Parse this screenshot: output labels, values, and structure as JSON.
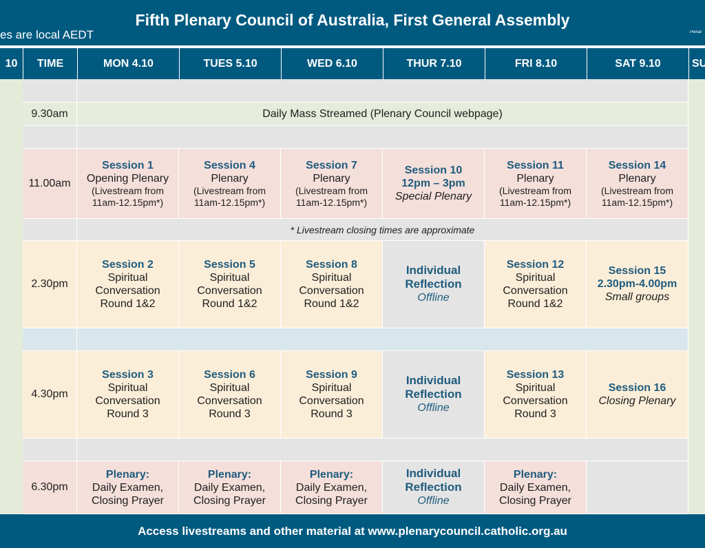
{
  "header": {
    "title": "Fifth Plenary Council of Australia, First General Assembly",
    "timezone_note": "es are local AEDT",
    "logo_text": "Plenar"
  },
  "columns": {
    "prev_day": "10",
    "time": "TIME",
    "mon": "MON 4.10",
    "tue": "TUES 5.10",
    "wed": "WED 6.10",
    "thu": "THUR 7.10",
    "fri": "FRI 8.10",
    "sat": "SAT 9.10",
    "sun": "SU"
  },
  "rows": {
    "mass": {
      "time": "9.30am",
      "text": "Daily Mass Streamed (Plenary Council webpage)"
    },
    "morning": {
      "time": "11.00am",
      "mon": {
        "title": "Session 1",
        "line1": "Opening Plenary",
        "stream1": "(Livestream from",
        "stream2": "11am-12.15pm*)"
      },
      "tue": {
        "title": "Session 4",
        "line1": "Plenary",
        "stream1": "(Livestream from",
        "stream2": "11am-12.15pm*)"
      },
      "wed": {
        "title": "Session 7",
        "line1": "Plenary",
        "stream1": "(Livestream from",
        "stream2": "11am-12.15pm*)"
      },
      "thu": {
        "title": "Session 10",
        "line1": "12pm – 3pm",
        "italic": "Special Plenary"
      },
      "fri": {
        "title": "Session 11",
        "line1": "Plenary",
        "stream1": "(Livestream from",
        "stream2": "11am-12.15pm*)"
      },
      "sat": {
        "title": "Session 14",
        "line1": "Plenary",
        "stream1": "(Livestream from",
        "stream2": "11am-12.15pm*)"
      }
    },
    "note": "* Livestream closing times are approximate",
    "afternoon": {
      "time": "2.30pm",
      "mon": {
        "title": "Session 2",
        "line1": "Spiritual",
        "line2": "Conversation",
        "line3": "Round 1&2"
      },
      "tue": {
        "title": "Session 5",
        "line1": "Spiritual",
        "line2": "Conversation",
        "line3": "Round 1&2"
      },
      "wed": {
        "title": "Session 8",
        "line1": "Spiritual",
        "line2": "Conversation",
        "line3": "Round 1&2"
      },
      "thu": {
        "line1": "Individual",
        "line2": "Reflection",
        "italic": "Offline"
      },
      "fri": {
        "title": "Session 12",
        "line1": "Spiritual",
        "line2": "Conversation",
        "line3": "Round 1&2"
      },
      "sat": {
        "title": "Session 15",
        "line1": "2.30pm-4.00pm",
        "italic": "Small groups"
      }
    },
    "late": {
      "time": "4.30pm",
      "mon": {
        "title": "Session 3",
        "line1": "Spiritual",
        "line2": "Conversation",
        "line3": "Round 3"
      },
      "tue": {
        "title": "Session 6",
        "line1": "Spiritual",
        "line2": "Conversation",
        "line3": "Round 3"
      },
      "wed": {
        "title": "Session 9",
        "line1": "Spiritual",
        "line2": "Conversation",
        "line3": "Round 3"
      },
      "thu": {
        "line1": "Individual",
        "line2": "Reflection",
        "italic": "Offline"
      },
      "fri": {
        "title": "Session 13",
        "line1": "Spiritual",
        "line2": "Conversation",
        "line3": "Round 3"
      },
      "sat": {
        "title": "Session 16",
        "italic": "Closing Plenary"
      }
    },
    "evening": {
      "time": "6.30pm",
      "mon": {
        "title": "Plenary:",
        "line1": "Daily Examen,",
        "line2": "Closing Prayer"
      },
      "tue": {
        "title": "Plenary:",
        "line1": "Daily Examen,",
        "line2": "Closing Prayer"
      },
      "wed": {
        "title": "Plenary:",
        "line1": "Daily Examen,",
        "line2": "Closing Prayer"
      },
      "thu": {
        "line1": "Individual",
        "line2": "Reflection",
        "italic": "Offline"
      },
      "fri": {
        "title": "Plenary:",
        "line1": "Daily Examen,",
        "line2": "Closing Prayer"
      }
    }
  },
  "footer": {
    "text": "Access livestreams and other material at www.plenarycouncil.catholic.org.au"
  }
}
